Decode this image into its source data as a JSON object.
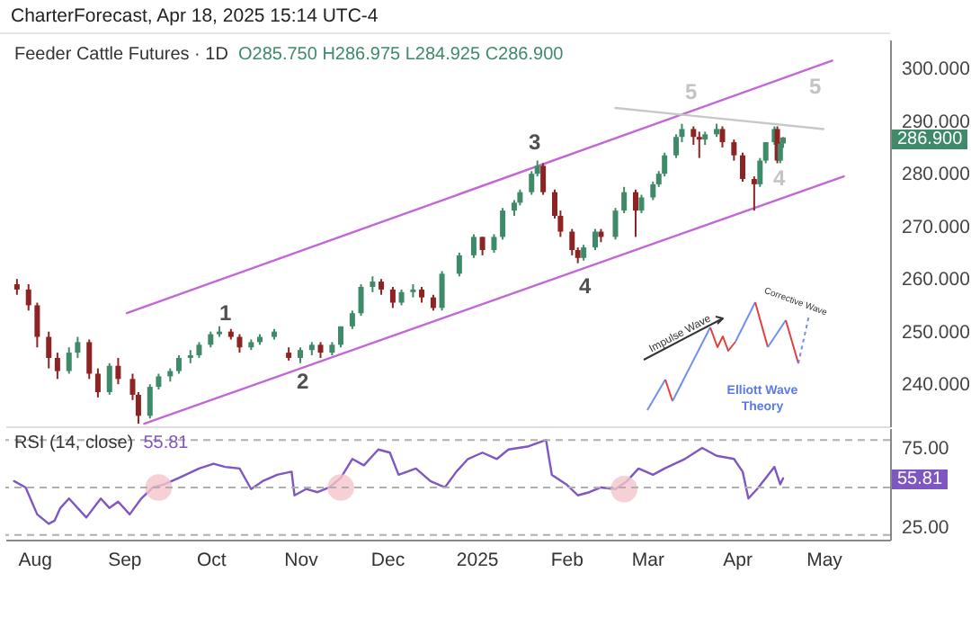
{
  "chart_data": [
    {
      "type": "candlestick",
      "title": "Feeder Cattle Futures · 1D",
      "x": [
        "2024-07-26",
        "2024-07-30",
        "2024-08-02",
        "2024-08-06",
        "2024-08-09",
        "2024-08-13",
        "2024-08-16",
        "2024-08-20",
        "2024-08-23",
        "2024-08-27",
        "2024-08-30",
        "2024-09-04",
        "2024-09-06",
        "2024-09-10",
        "2024-09-13",
        "2024-09-17",
        "2024-09-20",
        "2024-09-24",
        "2024-09-27",
        "2024-10-01",
        "2024-10-04",
        "2024-10-08",
        "2024-10-11",
        "2024-10-15",
        "2024-10-18",
        "2024-10-23",
        "2024-10-28",
        "2024-11-01",
        "2024-11-05",
        "2024-11-08",
        "2024-11-12",
        "2024-11-15",
        "2024-11-19",
        "2024-11-22",
        "2024-11-26",
        "2024-11-29",
        "2024-12-03",
        "2024-12-06",
        "2024-12-10",
        "2024-12-13",
        "2024-12-17",
        "2024-12-20",
        "2024-12-26",
        "2024-12-31",
        "2025-01-03",
        "2025-01-07",
        "2025-01-10",
        "2025-01-14",
        "2025-01-16",
        "2025-01-20",
        "2025-01-22",
        "2025-01-24",
        "2025-01-28",
        "2025-01-30",
        "2025-02-03",
        "2025-02-05",
        "2025-02-07",
        "2025-02-11",
        "2025-02-13",
        "2025-02-18",
        "2025-02-21",
        "2025-02-25",
        "2025-02-27",
        "2025-03-03",
        "2025-03-05",
        "2025-03-07",
        "2025-03-11",
        "2025-03-13",
        "2025-03-17",
        "2025-03-19",
        "2025-03-21",
        "2025-03-25",
        "2025-03-27",
        "2025-03-31",
        "2025-04-03",
        "2025-04-07",
        "2025-04-09",
        "2025-04-11",
        "2025-04-14",
        "2025-04-15",
        "2025-04-16",
        "2025-04-17"
      ],
      "ohlc": [
        [
          259,
          260,
          257,
          258
        ],
        [
          258,
          259,
          254,
          255
        ],
        [
          255,
          255.5,
          247,
          249
        ],
        [
          249,
          250,
          243,
          245
        ],
        [
          245,
          246,
          241,
          242.5
        ],
        [
          242.5,
          247,
          242,
          246
        ],
        [
          246,
          249,
          245,
          248
        ],
        [
          248,
          248.5,
          241,
          242
        ],
        [
          242,
          243,
          237.5,
          238.5
        ],
        [
          238.5,
          244,
          238,
          243.5
        ],
        [
          243.5,
          245,
          240,
          241
        ],
        [
          241,
          242,
          237,
          238
        ],
        [
          238,
          238.5,
          232.5,
          234
        ],
        [
          234,
          240,
          233.5,
          239.5
        ],
        [
          239.5,
          242,
          239,
          241.5
        ],
        [
          241.5,
          243,
          240.5,
          242.5
        ],
        [
          242.5,
          245.5,
          242,
          245
        ],
        [
          245,
          246.5,
          244,
          245.5
        ],
        [
          245.5,
          248,
          245,
          247.5
        ],
        [
          247.5,
          250,
          247,
          249.5
        ],
        [
          249.5,
          251,
          249,
          250
        ],
        [
          250,
          250.5,
          248.5,
          249
        ],
        [
          249,
          249.5,
          246,
          247
        ],
        [
          247,
          248.5,
          246.5,
          248
        ],
        [
          248,
          249.5,
          247.5,
          249
        ],
        [
          249,
          250.5,
          248.5,
          250
        ],
        [
          246,
          247,
          244.5,
          245
        ],
        [
          245,
          247,
          244,
          246.5
        ],
        [
          246.5,
          248,
          245.5,
          247.5
        ],
        [
          247.5,
          248,
          245,
          246
        ],
        [
          246,
          248,
          245.5,
          247.5
        ],
        [
          247.5,
          251,
          247,
          251
        ],
        [
          251,
          254,
          250.5,
          253.5
        ],
        [
          253.5,
          259,
          253,
          258.5
        ],
        [
          258.5,
          260.5,
          257.5,
          259.5
        ],
        [
          259.5,
          260,
          257,
          258
        ],
        [
          258,
          258.5,
          254.5,
          255.5
        ],
        [
          255.5,
          258,
          255,
          257.5
        ],
        [
          257.5,
          259,
          256.5,
          258
        ],
        [
          258,
          258.5,
          255.5,
          256.5
        ],
        [
          256.5,
          257,
          254,
          254.5
        ],
        [
          254.5,
          261.5,
          254,
          261
        ],
        [
          261,
          265,
          260.5,
          264.5
        ],
        [
          264.5,
          268.5,
          264,
          268
        ],
        [
          268,
          268,
          264.5,
          265.5
        ],
        [
          265.5,
          268.5,
          265,
          268
        ],
        [
          268,
          273.5,
          267.5,
          273
        ],
        [
          273,
          275,
          272,
          274.5
        ],
        [
          274.5,
          277,
          274,
          276.5
        ],
        [
          276.5,
          280.5,
          276,
          280
        ],
        [
          280,
          282.5,
          279.5,
          281.5
        ],
        [
          281.5,
          282,
          276,
          276.5
        ],
        [
          276.5,
          277,
          271.5,
          272
        ],
        [
          272,
          273,
          268,
          269
        ],
        [
          269,
          269.5,
          264.5,
          265.5
        ],
        [
          265.5,
          266,
          263,
          264
        ],
        [
          264,
          266.5,
          263.5,
          266
        ],
        [
          266,
          269.5,
          265.5,
          269
        ],
        [
          269,
          269.5,
          267,
          268
        ],
        [
          268,
          273.5,
          267.5,
          273
        ],
        [
          273,
          277.5,
          272.5,
          276.5
        ],
        [
          276.5,
          277,
          268,
          273
        ],
        [
          273,
          276,
          272.5,
          275.5
        ],
        [
          275.5,
          278.5,
          275,
          278
        ],
        [
          278,
          280.5,
          277.5,
          280
        ],
        [
          280,
          284,
          279.5,
          283.5
        ],
        [
          283.5,
          287.5,
          283,
          287
        ],
        [
          287,
          289.5,
          286,
          288.5
        ],
        [
          288.5,
          289,
          285.5,
          287
        ],
        [
          287,
          288,
          283,
          286.5
        ],
        [
          286.5,
          288,
          285.5,
          287.5
        ],
        [
          287.5,
          289.5,
          287,
          288.5
        ],
        [
          288.5,
          289,
          285,
          286
        ],
        [
          286,
          286.5,
          282.5,
          283.5
        ],
        [
          283.5,
          284,
          278.5,
          279
        ],
        [
          279,
          279.5,
          273,
          278
        ],
        [
          278,
          283,
          277.5,
          282.5
        ],
        [
          282.5,
          286,
          282,
          286
        ],
        [
          286,
          289,
          285.5,
          288.5
        ],
        [
          288.5,
          289,
          282,
          282.5
        ],
        [
          282.5,
          286,
          282,
          285.75
        ],
        [
          285.75,
          286.975,
          284.925,
          286.9
        ]
      ],
      "series": [
        {
          "type": "line",
          "color": "#c466d6",
          "x": [
            "2024-09-02",
            "2025-05-04"
          ],
          "values": [
            253.5,
            301.5
          ]
        },
        {
          "type": "line",
          "color": "#c466d6",
          "x": [
            "2024-09-08",
            "2025-05-08"
          ],
          "values": [
            232.5,
            279.5
          ]
        },
        {
          "type": "line",
          "color": "#c8c8c8",
          "x": [
            "2025-02-18",
            "2025-05-01"
          ],
          "values": [
            292.5,
            288.5
          ]
        }
      ],
      "xlim": [
        "2024-07-22",
        "2025-05-24"
      ],
      "ylim": [
        232,
        305.5
      ],
      "yticks": [
        {
          "value": 240,
          "label": "240.000"
        },
        {
          "value": 250,
          "label": "250.000"
        },
        {
          "value": 260,
          "label": "260.000"
        },
        {
          "value": 270,
          "label": "270.000"
        },
        {
          "value": 280,
          "label": "280.000"
        },
        {
          "value": 290,
          "label": "290.000"
        },
        {
          "value": 300,
          "label": "300.000"
        }
      ],
      "tick_labels": "y",
      "annotations": [
        "CharterForecast, Apr 18, 2025 15:14 UTC-4",
        "O285.750 H286.975 L284.925 C286.900",
        "Impulse Wave",
        "Corrective Wave",
        "Elliott Wave Theory",
        "1",
        "2",
        "3",
        "4",
        "5",
        "4",
        "5",
        "286.900"
      ]
    },
    {
      "type": "line",
      "title": "RSI (14, close)",
      "series": [
        {
          "color": "#7e57c2",
          "x": [
            "2024-07-25",
            "2024-07-29",
            "2024-08-02",
            "2024-08-06",
            "2024-08-08",
            "2024-08-10",
            "2024-08-13",
            "2024-08-16",
            "2024-08-19",
            "2024-08-24",
            "2024-08-27",
            "2024-08-30",
            "2024-09-03",
            "2024-09-07",
            "2024-09-11",
            "2024-09-15",
            "2024-09-20",
            "2024-09-27",
            "2024-10-02",
            "2024-10-06",
            "2024-10-11",
            "2024-10-15",
            "2024-10-19",
            "2024-10-24",
            "2024-10-29",
            "2024-10-30",
            "2024-11-03",
            "2024-11-07",
            "2024-11-11",
            "2024-11-15",
            "2024-11-19",
            "2024-11-23",
            "2024-11-28",
            "2024-12-02",
            "2024-12-05",
            "2024-12-11",
            "2024-12-16",
            "2024-12-21",
            "2024-12-25",
            "2024-12-29",
            "2025-01-03",
            "2025-01-08",
            "2025-01-12",
            "2025-01-19",
            "2025-01-25",
            "2025-01-27",
            "2025-02-01",
            "2025-02-05",
            "2025-02-09",
            "2025-02-13",
            "2025-02-18",
            "2025-02-22",
            "2025-02-26",
            "2025-03-03",
            "2025-03-07",
            "2025-03-14",
            "2025-03-20",
            "2025-03-25",
            "2025-03-31",
            "2025-04-03",
            "2025-04-05",
            "2025-04-08",
            "2025-04-11",
            "2025-04-14",
            "2025-04-16",
            "2025-04-17"
          ],
          "values": [
            54,
            50,
            33,
            27,
            29,
            37,
            43,
            37,
            31,
            43,
            37,
            41,
            33,
            43,
            50,
            52,
            56,
            62,
            65,
            63,
            62,
            49,
            54,
            58,
            60,
            45,
            49,
            47,
            50,
            56,
            68,
            64,
            74,
            72,
            58,
            62,
            54,
            50,
            60,
            68,
            72,
            68,
            74,
            76,
            80,
            58,
            52,
            45,
            47,
            50,
            49,
            54,
            62,
            58,
            62,
            68,
            75,
            70,
            68,
            60,
            43,
            49,
            56,
            63,
            52,
            55.81
          ]
        },
        {
          "type": "scatter",
          "color": "#f5c4ca",
          "x": [
            "2024-09-13",
            "2024-11-15",
            "2025-02-21"
          ],
          "values": [
            50,
            50,
            49
          ]
        }
      ],
      "xlim": [
        "2024-07-22",
        "2025-05-24"
      ],
      "ylim": [
        17,
        87.5
      ],
      "xticks": [
        {
          "value": "2024-08-01",
          "label": "Aug"
        },
        {
          "value": "2024-09-01",
          "label": "Sep"
        },
        {
          "value": "2024-10-01",
          "label": "Oct"
        },
        {
          "value": "2024-11-01",
          "label": "Nov"
        },
        {
          "value": "2024-12-01",
          "label": "Dec"
        },
        {
          "value": "2025-01-01",
          "label": "2025"
        },
        {
          "value": "2025-02-01",
          "label": "Feb"
        },
        {
          "value": "2025-03-01",
          "label": "Mar"
        },
        {
          "value": "2025-04-01",
          "label": "Apr"
        },
        {
          "value": "2025-05-01",
          "label": "May"
        }
      ],
      "yticks": [
        {
          "value": 25,
          "label": "25.00"
        },
        {
          "value": 75,
          "label": "75.00"
        }
      ],
      "ref_lines": [
        {
          "axis": "y",
          "value": 80,
          "color": "#b0b0b0",
          "line_style": "dashed"
        },
        {
          "axis": "y",
          "value": 50,
          "color": "#b0b0b0",
          "line_style": "dashed"
        },
        {
          "axis": "y",
          "value": 20,
          "color": "#b0b0b0",
          "line_style": "dashed"
        }
      ],
      "annotations": [
        "55.81",
        {
          "text": "55.81",
          "y": 55.81
        }
      ]
    }
  ]
}
